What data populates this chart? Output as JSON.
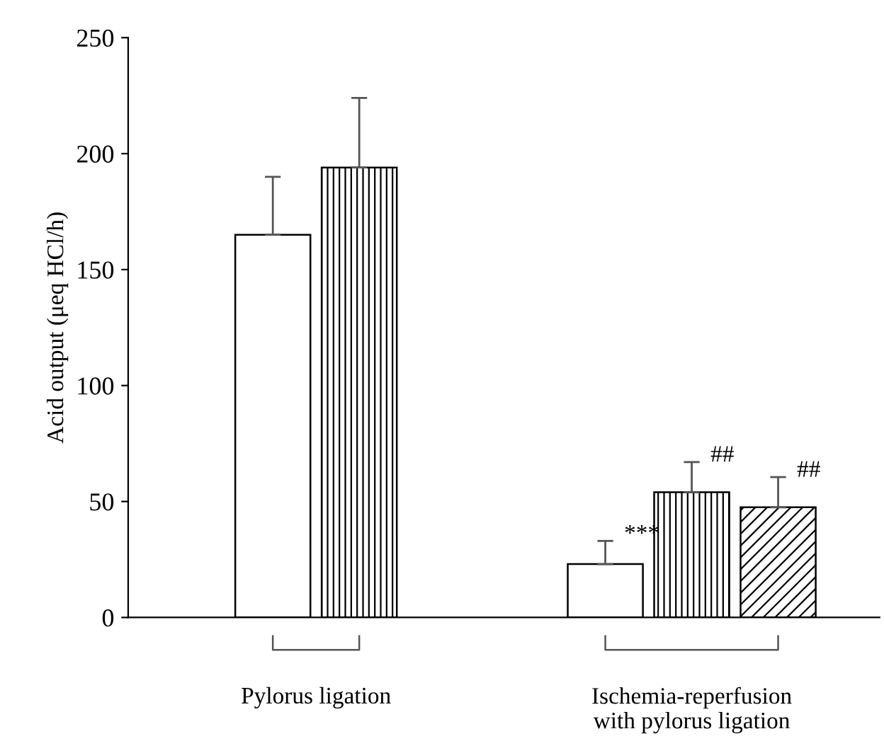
{
  "chart_data": {
    "type": "bar",
    "ylabel": "Acid output (μeq HCl/h)",
    "categories": [
      "Pylorus ligation",
      "Ischemia-reperfusion\nwith pylorus ligation"
    ],
    "series": [
      {
        "color": "#ffffff",
        "values": [
          165,
          23
        ],
        "errors": [
          [
            165,
            190
          ],
          [
            23,
            33
          ]
        ]
      },
      {
        "color": "#000000",
        "values": [
          194,
          54
        ],
        "errors": [
          [
            194,
            224
          ],
          [
            54,
            67
          ]
        ]
      },
      {
        "color": "#000000",
        "values": [
          null,
          47.5
        ],
        "errors": [
          null,
          [
            47.5,
            60.5
          ]
        ]
      }
    ],
    "annotations": [
      "***",
      "##",
      "##"
    ],
    "ylim": [
      0,
      250
    ],
    "yticks": [
      0,
      50,
      100,
      150,
      200,
      250
    ],
    "grid": false,
    "legend": false
  }
}
